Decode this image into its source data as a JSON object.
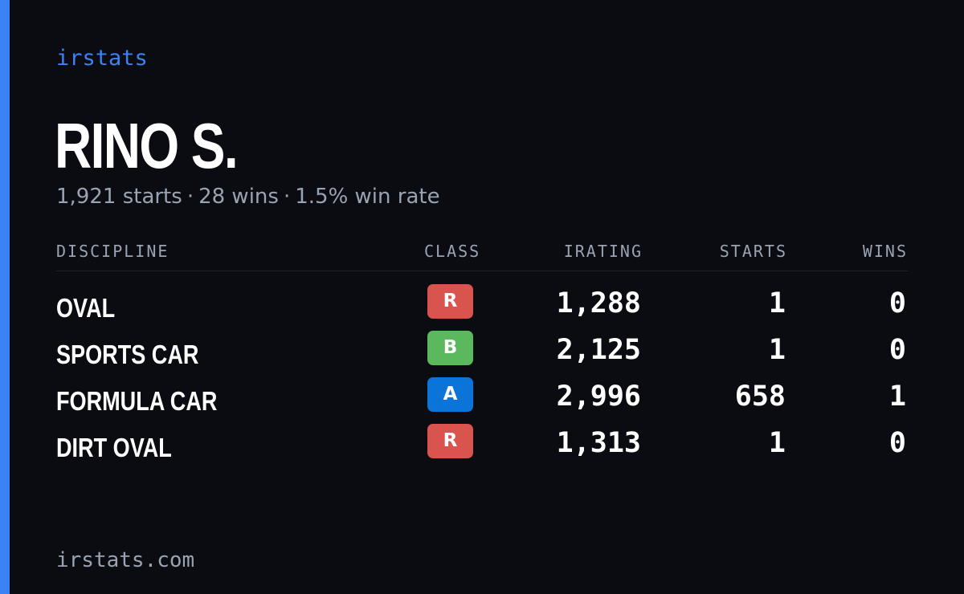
{
  "brand": "irstats",
  "player": {
    "name": "RINO S.",
    "starts_text": "1,921 starts",
    "wins_text": "28 wins",
    "win_rate_text": "1.5% win rate",
    "separator": "·"
  },
  "table": {
    "headers": {
      "discipline": "DISCIPLINE",
      "class": "CLASS",
      "irating": "IRATING",
      "starts": "STARTS",
      "wins": "WINS"
    },
    "rows": [
      {
        "discipline": "OVAL",
        "class": "R",
        "class_color": "#d9534f",
        "irating": "1,288",
        "starts": "1",
        "wins": "0"
      },
      {
        "discipline": "SPORTS CAR",
        "class": "B",
        "class_color": "#5cb85c",
        "irating": "2,125",
        "starts": "1",
        "wins": "0"
      },
      {
        "discipline": "FORMULA CAR",
        "class": "A",
        "class_color": "#0a74d8",
        "irating": "2,996",
        "starts": "658",
        "wins": "1"
      },
      {
        "discipline": "DIRT OVAL",
        "class": "R",
        "class_color": "#d9534f",
        "irating": "1,313",
        "starts": "1",
        "wins": "0"
      }
    ]
  },
  "footer": "irstats.com",
  "colors": {
    "accent": "#3b82f6",
    "background": "#0a0c12",
    "muted_text": "#9aa3b2"
  }
}
